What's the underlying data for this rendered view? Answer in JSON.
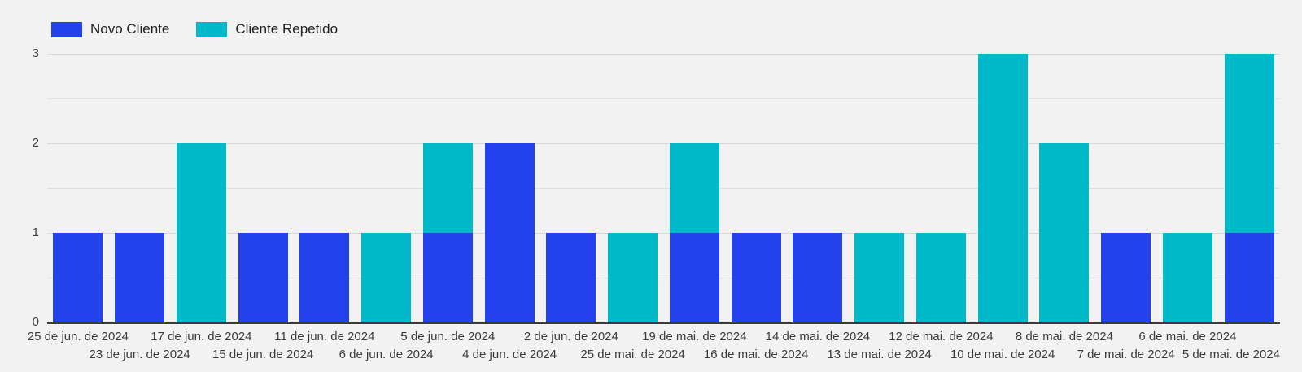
{
  "legend": {
    "items": [
      {
        "label": "Novo Cliente",
        "color": "#2342EC"
      },
      {
        "label": "Cliente Repetido",
        "color": "#00B9C9"
      }
    ]
  },
  "chart_data": {
    "type": "bar",
    "stacked": true,
    "title": "",
    "xlabel": "",
    "ylabel": "",
    "ylim": [
      0,
      3
    ],
    "y_ticks": [
      0,
      1,
      2,
      3
    ],
    "y_minor_ticks": [
      0.5,
      1.5,
      2.5
    ],
    "grid": true,
    "legend_position": "top-left",
    "categories": [
      "25 de jun. de 2024",
      "23 de jun. de 2024",
      "17 de jun. de 2024",
      "15 de jun. de 2024",
      "11 de jun. de 2024",
      "6 de jun. de 2024",
      "5 de jun. de 2024",
      "4 de jun. de 2024",
      "2 de jun. de 2024",
      "25 de mai. de 2024",
      "19 de mai. de 2024",
      "16 de mai. de 2024",
      "14 de mai. de 2024",
      "13 de mai. de 2024",
      "12 de mai. de 2024",
      "10 de mai. de 2024",
      "8 de mai. de 2024",
      "7 de mai. de 2024",
      "6 de mai. de 2024",
      "5 de mai. de 2024"
    ],
    "series": [
      {
        "name": "Novo Cliente",
        "color": "#2342EC",
        "values": [
          1,
          1,
          0,
          1,
          1,
          0,
          1,
          2,
          1,
          0,
          1,
          1,
          1,
          0,
          0,
          0,
          0,
          1,
          0,
          1
        ]
      },
      {
        "name": "Cliente Repetido",
        "color": "#00B9C9",
        "values": [
          0,
          0,
          2,
          0,
          0,
          1,
          1,
          0,
          0,
          1,
          1,
          0,
          0,
          1,
          1,
          3,
          2,
          0,
          1,
          2
        ]
      }
    ]
  },
  "colors": {
    "background": "#F2F2F2",
    "grid_major": "#D8D8D8",
    "grid_minor": "#DFDFDF",
    "axis_line": "#3B3B3B",
    "tick_text": "#424242",
    "legend_text": "#212121"
  }
}
